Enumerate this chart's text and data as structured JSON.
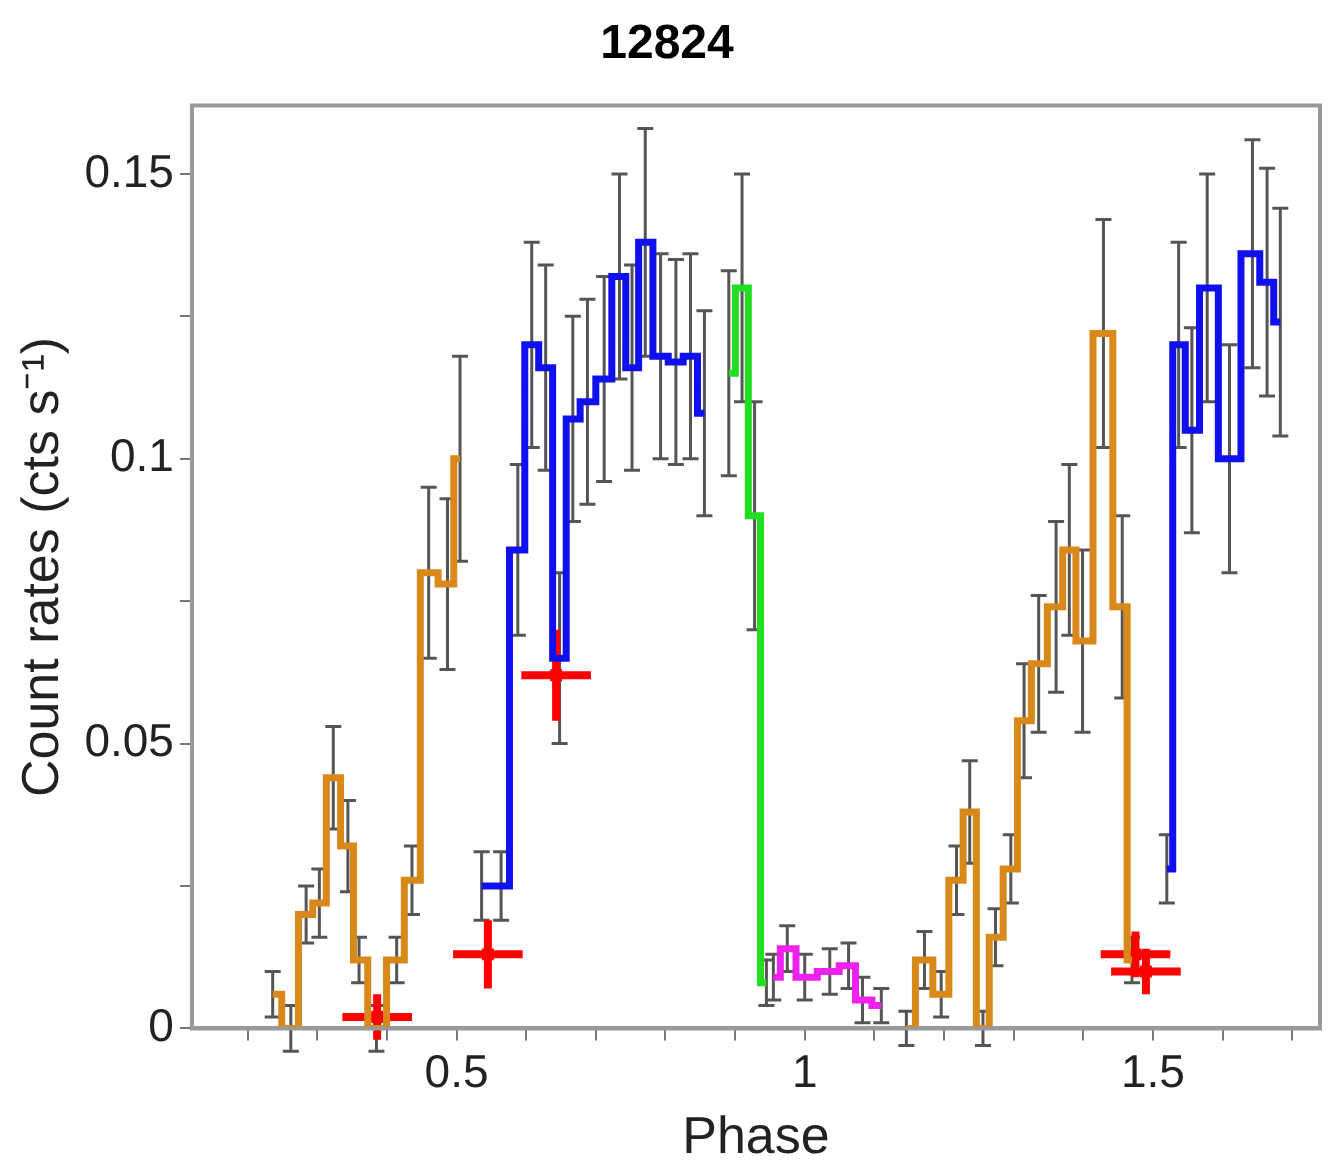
{
  "chart_data": {
    "type": "step",
    "title": "12824",
    "xlabel": "Phase",
    "ylabel": "Count rates (cts s⁻¹)",
    "xlim": [
      0.12,
      1.74
    ],
    "ylim": [
      0,
      0.162
    ],
    "xticks": [
      {
        "value": 0.2,
        "label": null
      },
      {
        "value": 0.3,
        "label": null
      },
      {
        "value": 0.4,
        "label": null
      },
      0.5,
      {
        "value": 0.6,
        "label": null
      },
      {
        "value": 0.7,
        "label": null
      },
      {
        "value": 0.8,
        "label": null
      },
      {
        "value": 0.9,
        "label": null
      },
      1,
      {
        "value": 1.1,
        "label": null
      },
      {
        "value": 1.2,
        "label": null
      },
      {
        "value": 1.3,
        "label": null
      },
      {
        "value": 1.4,
        "label": null
      },
      1.5,
      {
        "value": 1.6,
        "label": null
      },
      {
        "value": 1.7,
        "label": null
      }
    ],
    "yticks": [
      0,
      {
        "value": 0.025,
        "label": null
      },
      0.05,
      {
        "value": 0.075,
        "label": null
      },
      0.1,
      {
        "value": 0.125,
        "label": null
      },
      0.15
    ],
    "grid": false,
    "legend": false,
    "marker": "none",
    "line_style": "solid",
    "series": [
      {
        "color": "#d9891a",
        "x": [
          0.236,
          0.262,
          0.284,
          0.303,
          0.323,
          0.344,
          0.36,
          0.385,
          0.414,
          0.436,
          0.46,
          0.487,
          0.505
        ],
        "values": [
          0.006,
          0,
          0.02,
          0.022,
          0.044,
          0.032,
          0.012,
          0,
          0.012,
          0.026,
          0.08,
          0.078,
          0.1
        ],
        "errors": [
          0.004,
          0.004,
          0.005,
          0.006,
          0.009,
          0.008,
          0.004,
          0.004,
          0.004,
          0.006,
          0.015,
          0.015,
          0.018
        ]
      },
      {
        "color": "#1010ee",
        "x": [
          0.536,
          0.564,
          0.588,
          0.608,
          0.628,
          0.648,
          0.667,
          0.688,
          0.712,
          0.734,
          0.752,
          0.771,
          0.793,
          0.815,
          0.836,
          0.856
        ],
        "values": [
          0.025,
          0.025,
          0.084,
          0.12,
          0.116,
          0.065,
          0.107,
          0.11,
          0.114,
          0.132,
          0.116,
          0.138,
          0.118,
          0.117,
          0.118,
          0.108
        ],
        "errors": [
          0.006,
          0.006,
          0.015,
          0.018,
          0.018,
          0.015,
          0.018,
          0.018,
          0.018,
          0.018,
          0.018,
          0.02,
          0.018,
          0.018,
          0.018,
          0.018
        ]
      },
      {
        "color": "#22dd22",
        "x": [
          0.891,
          0.91,
          0.928,
          0.945
        ],
        "values": [
          0.115,
          0.13,
          0.09,
          0.008
        ],
        "errors": [
          0.018,
          0.02,
          0.02,
          0.004
        ]
      },
      {
        "color": "#ee22ee",
        "x": [
          0.955,
          0.975,
          1.0,
          1.036,
          1.063,
          1.083,
          1.11
        ],
        "values": [
          0.009,
          0.014,
          0.009,
          0.01,
          0.011,
          0.005,
          0.004
        ],
        "errors": [
          0.004,
          0.004,
          0.004,
          0.004,
          0.004,
          0.004,
          0.003
        ]
      },
      {
        "color": "#d9891a",
        "x": [
          1.146,
          1.172,
          1.196,
          1.218,
          1.237,
          1.256,
          1.274,
          1.296,
          1.315,
          1.336,
          1.361,
          1.38,
          1.399,
          1.429,
          1.456,
          1.47
        ],
        "values": [
          0,
          0.012,
          0.006,
          0.026,
          0.038,
          0,
          0.016,
          0.028,
          0.054,
          0.064,
          0.074,
          0.084,
          0.068,
          0.122,
          0.074,
          0.012
        ],
        "errors": [
          0.003,
          0.005,
          0.004,
          0.006,
          0.009,
          0.003,
          0.005,
          0.006,
          0.01,
          0.012,
          0.015,
          0.015,
          0.016,
          0.02,
          0.016,
          0.004
        ]
      },
      {
        "color": "#1010ee",
        "x": [
          1.52,
          1.537,
          1.556,
          1.578,
          1.61,
          1.643,
          1.664,
          1.683
        ],
        "values": [
          0.028,
          0.12,
          0.105,
          0.13,
          0.1,
          0.136,
          0.131,
          0.124
        ],
        "errors": [
          0.006,
          0.018,
          0.018,
          0.02,
          0.02,
          0.02,
          0.02,
          0.02
        ]
      },
      {
        "type": "scatter",
        "marker": "square",
        "color": "#ff0000",
        "x": [
          0.386,
          0.545,
          0.643,
          1.475,
          1.49
        ],
        "values": [
          0.002,
          0.013,
          0.062,
          0.013,
          0.01
        ],
        "errors": [
          0.004,
          0.006,
          0.008,
          0.004,
          0.004
        ],
        "xerrors": [
          0.05,
          0.05,
          0.05,
          0.05,
          0.05
        ]
      }
    ]
  }
}
